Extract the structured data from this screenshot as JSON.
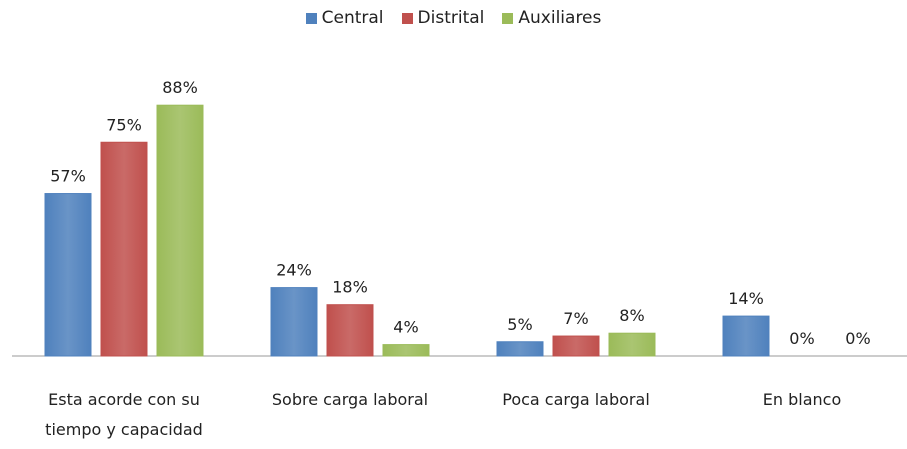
{
  "chart_data": {
    "type": "bar",
    "categories": [
      "Esta acorde con su tiempo y capacidad",
      "Sobre carga laboral",
      "Poca carga laboral",
      "En blanco"
    ],
    "series": [
      {
        "name": "Central",
        "color": "#4f81bd",
        "values": [
          57,
          24,
          5,
          14
        ],
        "value_labels": [
          "57%",
          "24%",
          "5%",
          "14%"
        ]
      },
      {
        "name": "Distrital",
        "color": "#c0504d",
        "values": [
          75,
          18,
          7,
          0
        ],
        "value_labels": [
          "75%",
          "18%",
          "7%",
          "0%"
        ]
      },
      {
        "name": "Auxiliares",
        "color": "#9bbb59",
        "values": [
          88,
          4,
          8,
          0
        ],
        "value_labels": [
          "88%",
          "4%",
          "8%",
          "0%"
        ]
      }
    ],
    "legend": "top"
  }
}
